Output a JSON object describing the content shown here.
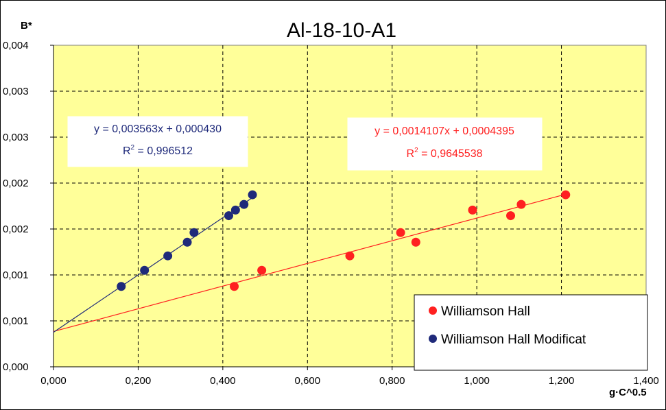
{
  "chart_data": {
    "type": "scatter",
    "title": "Al-18-10-A1",
    "xlabel": "g·C^0.5",
    "ylabel": "B*",
    "xlim": [
      0,
      1.4
    ],
    "ylim": [
      0,
      0.004
    ],
    "x_tick_labels": [
      "0,000",
      "0,200",
      "0,400",
      "0,600",
      "0,800",
      "1,000",
      "1,200",
      "1,400"
    ],
    "y_tick_labels": [
      "0,000",
      "0,001",
      "0,001",
      "0,002",
      "0,002",
      "0,003",
      "0,003",
      "0,004"
    ],
    "grid": true,
    "plot_background": "#FFFF99",
    "legend_position": "bottom-right",
    "series": [
      {
        "name": "Williamson Hall",
        "color": "#FF2020",
        "points": [
          {
            "x": 0.427,
            "y": 0.001
          },
          {
            "x": 0.492,
            "y": 0.0012
          },
          {
            "x": 0.7,
            "y": 0.00138
          },
          {
            "x": 0.82,
            "y": 0.00167
          },
          {
            "x": 0.856,
            "y": 0.00155
          },
          {
            "x": 0.99,
            "y": 0.00195
          },
          {
            "x": 1.08,
            "y": 0.00188
          },
          {
            "x": 1.105,
            "y": 0.00202
          },
          {
            "x": 1.21,
            "y": 0.00214
          }
        ],
        "trendline": {
          "slope": 0.0014107,
          "intercept": 0.0004395,
          "x_range": [
            0,
            1.21
          ]
        },
        "equation": "y = 0,0014107x + 0,0004395",
        "r2_prefix": "R",
        "r2_value": " = 0,9645538"
      },
      {
        "name": "Williamson Hall Modificat",
        "color": "#1F2A7A",
        "points": [
          {
            "x": 0.16,
            "y": 0.001
          },
          {
            "x": 0.215,
            "y": 0.0012
          },
          {
            "x": 0.27,
            "y": 0.00138
          },
          {
            "x": 0.316,
            "y": 0.00155
          },
          {
            "x": 0.332,
            "y": 0.00167
          },
          {
            "x": 0.414,
            "y": 0.00188
          },
          {
            "x": 0.43,
            "y": 0.00195
          },
          {
            "x": 0.45,
            "y": 0.00202
          },
          {
            "x": 0.47,
            "y": 0.00214
          }
        ],
        "trendline": {
          "slope": 0.003563,
          "intercept": 0.00043,
          "x_range": [
            0,
            0.47
          ]
        },
        "equation": "y = 0,003563x + 0,000430",
        "r2_prefix": "R",
        "r2_value": " = 0,996512"
      }
    ]
  }
}
